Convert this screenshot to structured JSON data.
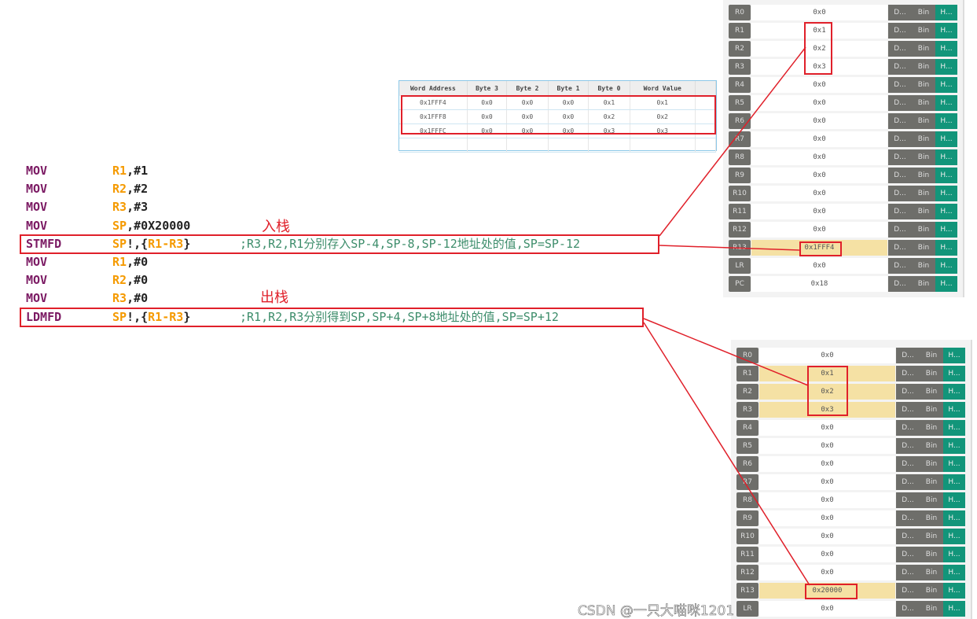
{
  "code": [
    {
      "op": "MOV",
      "reg": "R1",
      "rest": ",#1",
      "comment": ""
    },
    {
      "op": "MOV",
      "reg": "R2",
      "rest": ",#2",
      "comment": ""
    },
    {
      "op": "MOV",
      "reg": "R3",
      "rest": ",#3",
      "comment": ""
    },
    {
      "op": "MOV",
      "reg": "SP",
      "rest": ",#0X20000",
      "comment": ""
    },
    {
      "op": "STMFD",
      "reg": "SP",
      "rest": "!,{",
      "reg2": "R1-R3",
      "rest2": "}",
      "comment": ";R3,R2,R1分别存入SP-4,SP-8,SP-12地址处的值,SP=SP-12"
    },
    {
      "op": "MOV",
      "reg": "R1",
      "rest": ",#0",
      "comment": ""
    },
    {
      "op": "MOV",
      "reg": "R2",
      "rest": ",#0",
      "comment": ""
    },
    {
      "op": "MOV",
      "reg": "R3",
      "rest": ",#0",
      "comment": ""
    },
    {
      "op": "LDMFD",
      "reg": "SP",
      "rest": "!,{",
      "reg2": "R1-R3",
      "rest2": "}",
      "comment": ";R1,R2,R3分别得到SP,SP+4,SP+8地址处的值,SP=SP+12"
    }
  ],
  "notes": {
    "push": "入栈",
    "pop": "出栈"
  },
  "memory": {
    "headers": [
      "Word Address",
      "Byte 3",
      "Byte 2",
      "Byte 1",
      "Byte 0",
      "Word Value",
      ""
    ],
    "rows": [
      [
        "0x1FFF4",
        "0x0",
        "0x0",
        "0x0",
        "0x1",
        "0x1",
        ""
      ],
      [
        "0x1FFF8",
        "0x0",
        "0x0",
        "0x0",
        "0x2",
        "0x2",
        ""
      ],
      [
        "0x1FFFC",
        "0x0",
        "0x0",
        "0x0",
        "0x3",
        "0x3",
        ""
      ],
      [
        "",
        "",
        "",
        "",
        "",
        "",
        ""
      ]
    ]
  },
  "buttons": {
    "dec": "D...",
    "bin": "Bin",
    "hex": "H..."
  },
  "registers_after_push": [
    {
      "name": "R0",
      "value": "0x0"
    },
    {
      "name": "R1",
      "value": "0x1"
    },
    {
      "name": "R2",
      "value": "0x2"
    },
    {
      "name": "R3",
      "value": "0x3"
    },
    {
      "name": "R4",
      "value": "0x0"
    },
    {
      "name": "R5",
      "value": "0x0"
    },
    {
      "name": "R6",
      "value": "0x0"
    },
    {
      "name": "R7",
      "value": "0x0"
    },
    {
      "name": "R8",
      "value": "0x0"
    },
    {
      "name": "R9",
      "value": "0x0"
    },
    {
      "name": "R10",
      "value": "0x0"
    },
    {
      "name": "R11",
      "value": "0x0"
    },
    {
      "name": "R12",
      "value": "0x0"
    },
    {
      "name": "R13",
      "value": "0x1FFF4",
      "highlight": true
    },
    {
      "name": "LR",
      "value": "0x0"
    },
    {
      "name": "PC",
      "value": "0x18"
    }
  ],
  "registers_after_pop": [
    {
      "name": "R0",
      "value": "0x0"
    },
    {
      "name": "R1",
      "value": "0x1",
      "highlight": true
    },
    {
      "name": "R2",
      "value": "0x2",
      "highlight": true
    },
    {
      "name": "R3",
      "value": "0x3",
      "highlight": true
    },
    {
      "name": "R4",
      "value": "0x0"
    },
    {
      "name": "R5",
      "value": "0x0"
    },
    {
      "name": "R6",
      "value": "0x0"
    },
    {
      "name": "R7",
      "value": "0x0"
    },
    {
      "name": "R8",
      "value": "0x0"
    },
    {
      "name": "R9",
      "value": "0x0"
    },
    {
      "name": "R10",
      "value": "0x0"
    },
    {
      "name": "R11",
      "value": "0x0"
    },
    {
      "name": "R12",
      "value": "0x0"
    },
    {
      "name": "R13",
      "value": "0x20000",
      "highlight": true
    },
    {
      "name": "LR",
      "value": "0x0"
    }
  ],
  "colors": {
    "highlight": "#f5e1a4",
    "hex_button": "#12957a",
    "annotation": "#e0202a"
  },
  "watermark": "CSDN @一只大喵咪1201"
}
